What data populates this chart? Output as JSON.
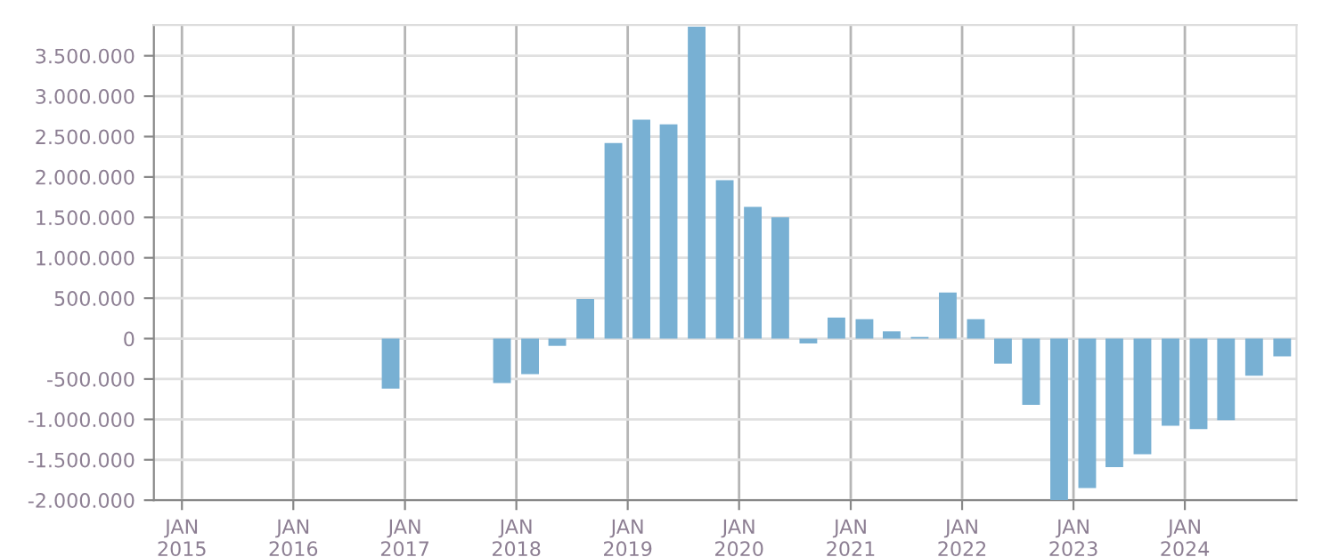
{
  "chart_data": {
    "type": "bar",
    "color": "#78b0d3",
    "grid": true,
    "x": [
      "2016-11-15",
      "2017-11-15",
      "2018-02-15",
      "2018-05-15",
      "2018-08-15",
      "2018-11-15",
      "2019-02-15",
      "2019-05-15",
      "2019-08-15",
      "2019-11-15",
      "2020-02-15",
      "2020-05-15",
      "2020-08-15",
      "2020-11-15",
      "2021-02-15",
      "2021-05-15",
      "2021-08-15",
      "2021-11-15",
      "2022-02-15",
      "2022-05-15",
      "2022-08-15",
      "2022-11-15",
      "2023-02-15",
      "2023-05-15",
      "2023-08-15",
      "2023-11-15",
      "2024-02-15",
      "2024-05-15",
      "2024-08-15",
      "2024-11-15"
    ],
    "values": [
      -620000,
      -550000,
      -440000,
      -90000,
      490000,
      2420000,
      2710000,
      2650000,
      3860000,
      1960000,
      1630000,
      1500000,
      -60000,
      260000,
      240000,
      90000,
      20000,
      570000,
      240000,
      -310000,
      -820000,
      -2000000,
      -1850000,
      -1590000,
      -1430000,
      -1080000,
      -1120000,
      -1010000,
      -460000,
      -220000
    ],
    "xlim": [
      "2014-10-01",
      "2025-01-01"
    ],
    "xticks": [
      {
        "value": "2015-01-01",
        "label": "JAN\n2015"
      },
      {
        "value": "2016-01-01",
        "label": "JAN\n2016"
      },
      {
        "value": "2017-01-01",
        "label": "JAN\n2017"
      },
      {
        "value": "2018-01-01",
        "label": "JAN\n2018"
      },
      {
        "value": "2019-01-01",
        "label": "JAN\n2019"
      },
      {
        "value": "2020-01-01",
        "label": "JAN\n2020"
      },
      {
        "value": "2021-01-01",
        "label": "JAN\n2021"
      },
      {
        "value": "2022-01-01",
        "label": "JAN\n2022"
      },
      {
        "value": "2023-01-01",
        "label": "JAN\n2023"
      },
      {
        "value": "2024-01-01",
        "label": "JAN\n2024"
      }
    ],
    "ylim": [
      -2000000,
      3880000
    ],
    "yticks": [
      {
        "value": -2000000,
        "label": "-2.000.000"
      },
      {
        "value": -1500000,
        "label": "-1.500.000"
      },
      {
        "value": -1000000,
        "label": "-1.000.000"
      },
      {
        "value": -500000,
        "label": "-500.000"
      },
      {
        "value": 0,
        "label": "0"
      },
      {
        "value": 500000,
        "label": "500.000"
      },
      {
        "value": 1000000,
        "label": "1.000.000"
      },
      {
        "value": 1500000,
        "label": "1.500.000"
      },
      {
        "value": 2000000,
        "label": "2.000.000"
      },
      {
        "value": 2500000,
        "label": "2.500.000"
      },
      {
        "value": 3000000,
        "label": "3.000.000"
      },
      {
        "value": 3500000,
        "label": "3.500.000"
      }
    ]
  }
}
